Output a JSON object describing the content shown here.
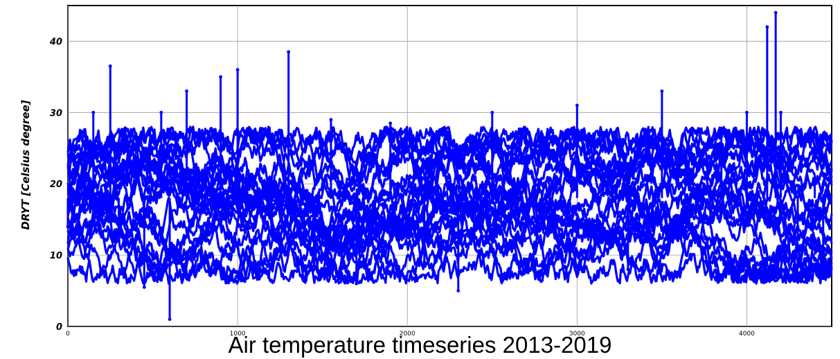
{
  "chart_data": {
    "type": "scatter",
    "title": "Air temperature timeseries 2013-2019",
    "ylabel": "DRYT [Celsius degree]",
    "xlabel": "",
    "ylim": [
      0,
      45
    ],
    "yticks": [
      0,
      10,
      20,
      30,
      40
    ],
    "xlim": [
      0,
      4500
    ],
    "xticks": [
      0,
      1000,
      2000,
      3000,
      4000
    ],
    "grid": true,
    "marker_color": "#0000ff",
    "series": [
      {
        "x": [
          0,
          100,
          150,
          250,
          300,
          450,
          550,
          600,
          700,
          900,
          950,
          1000,
          1200,
          1300,
          1450,
          1550,
          1700,
          1900,
          2100,
          2200,
          2300,
          2500,
          2700,
          2850,
          3000,
          3300,
          3500,
          3700,
          3850,
          4000,
          4120,
          4170,
          4200,
          4300,
          4400,
          4450
        ],
        "y": [
          14,
          26,
          30,
          36.5,
          12,
          5.5,
          30,
          1,
          33,
          35,
          18,
          36,
          14,
          38.5,
          8,
          29,
          6,
          28.5,
          9,
          17,
          5,
          30,
          27,
          15,
          31,
          8,
          33,
          16,
          27,
          30,
          42,
          44,
          30,
          14,
          20,
          11
        ]
      }
    ]
  }
}
